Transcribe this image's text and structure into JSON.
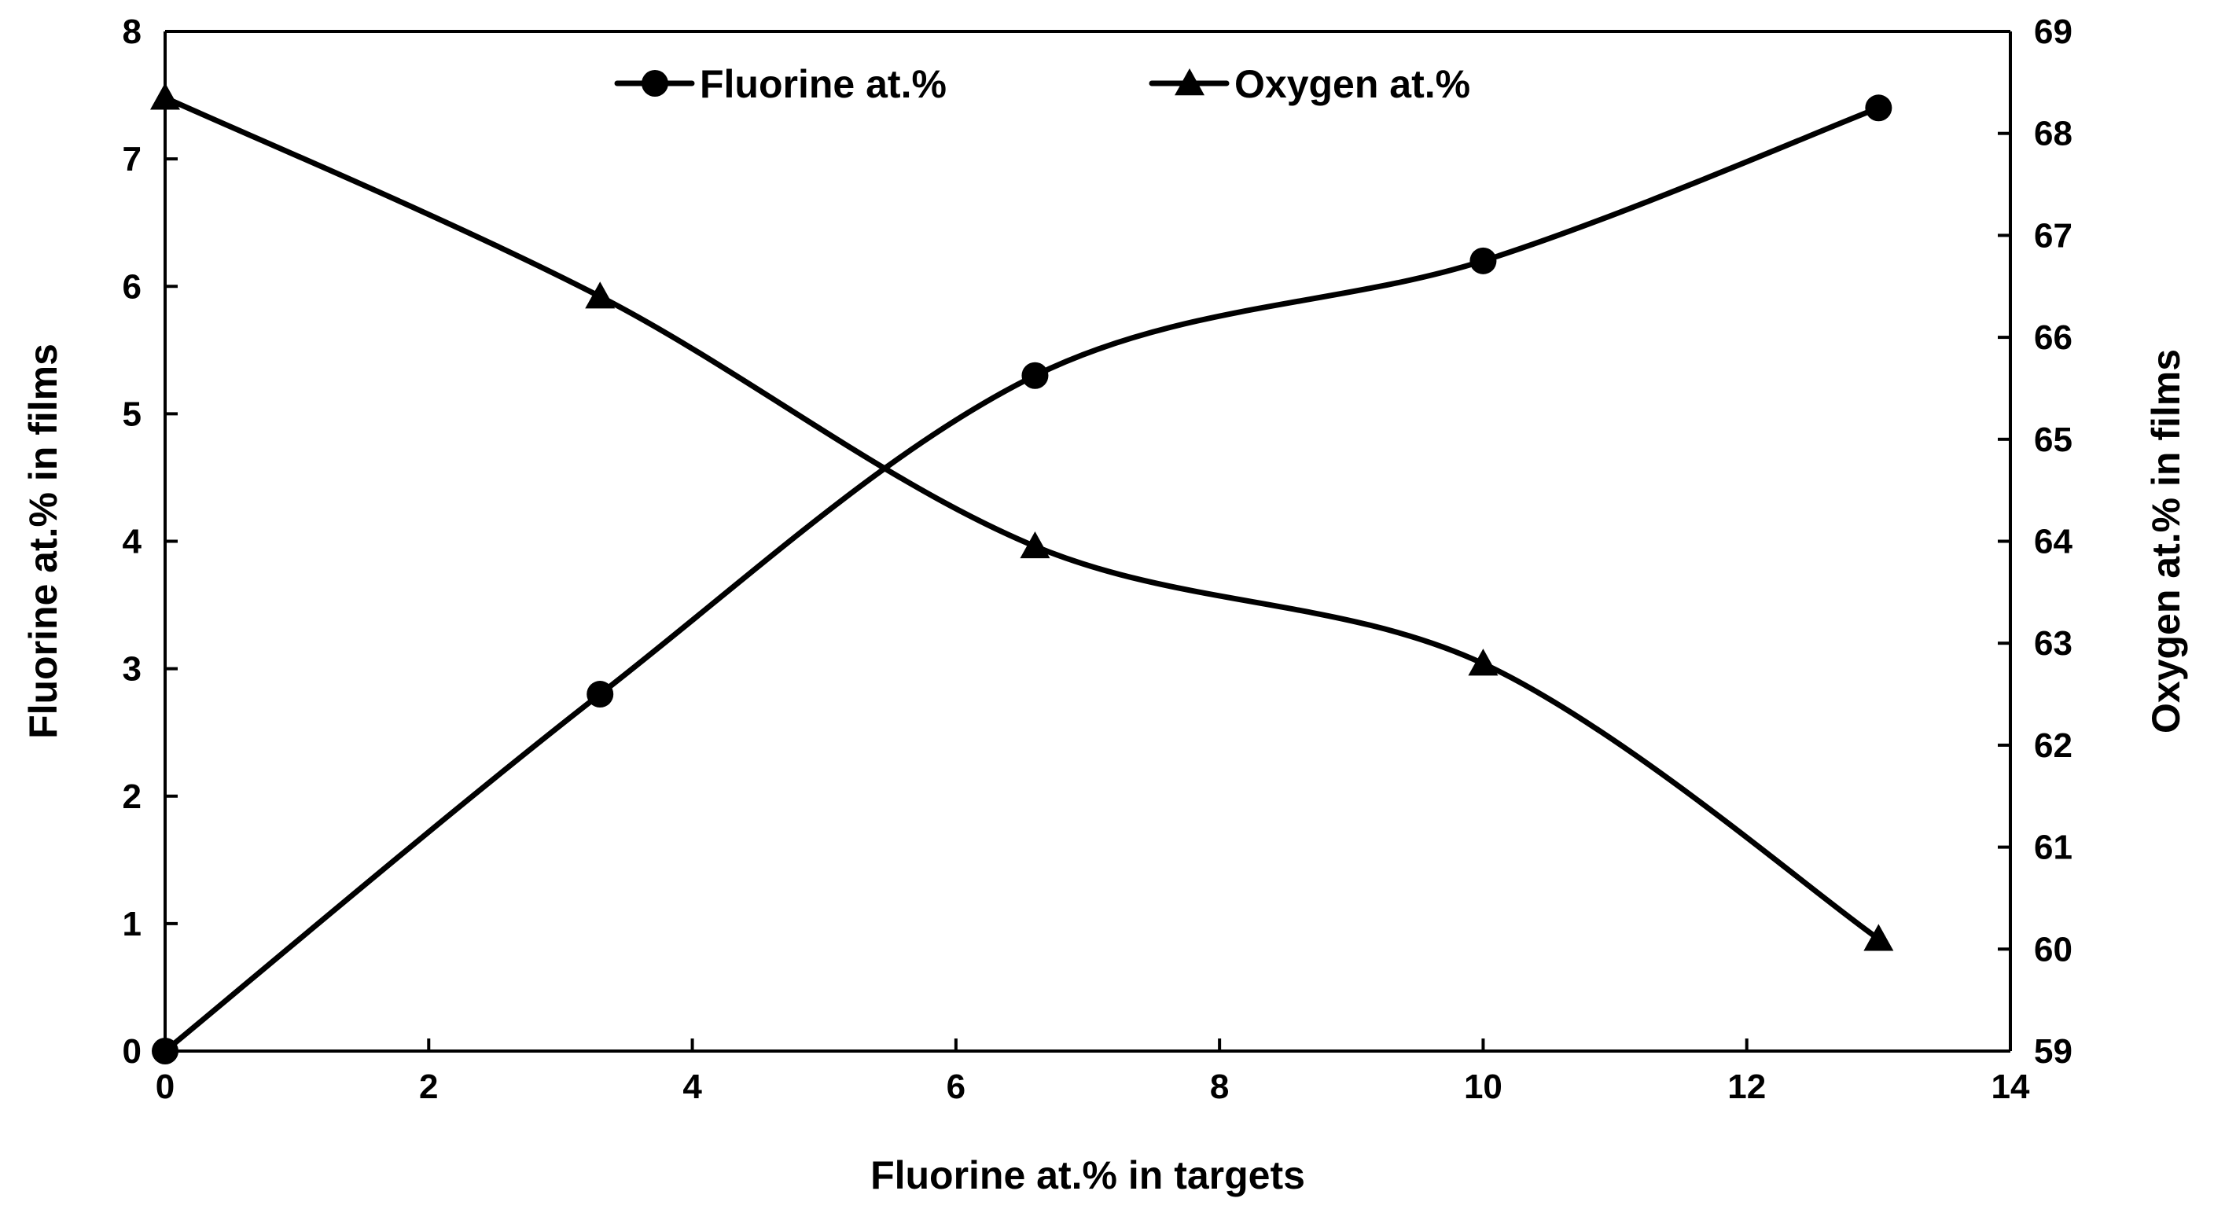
{
  "chart_data": {
    "type": "line",
    "smooth": true,
    "xlabel": "Fluorine at.% in targets",
    "ylabel_left": "Fluorine at.% in films",
    "ylabel_right": "Oxygen at.% in films",
    "xlim": [
      0,
      14
    ],
    "ylim_left": [
      0,
      8
    ],
    "ylim_right": [
      59,
      69
    ],
    "x_ticks": [
      0,
      2,
      4,
      6,
      8,
      10,
      12,
      14
    ],
    "y_left_ticks": [
      0,
      1,
      2,
      3,
      4,
      5,
      6,
      7,
      8
    ],
    "y_right_ticks": [
      59,
      60,
      61,
      62,
      63,
      64,
      65,
      66,
      67,
      68,
      69
    ],
    "grid": false,
    "legend_position": "top-center",
    "x": [
      0,
      3.3,
      6.6,
      10,
      13
    ],
    "series": [
      {
        "name": "Fluorine at.%",
        "axis": "left",
        "marker": "circle",
        "color": "#000000",
        "values": [
          0,
          2.8,
          5.3,
          6.2,
          7.4
        ]
      },
      {
        "name": "Oxygen at.%",
        "axis": "right",
        "marker": "triangle",
        "color": "#000000",
        "values": [
          68.35,
          66.4,
          63.95,
          62.8,
          60.1
        ]
      }
    ]
  }
}
